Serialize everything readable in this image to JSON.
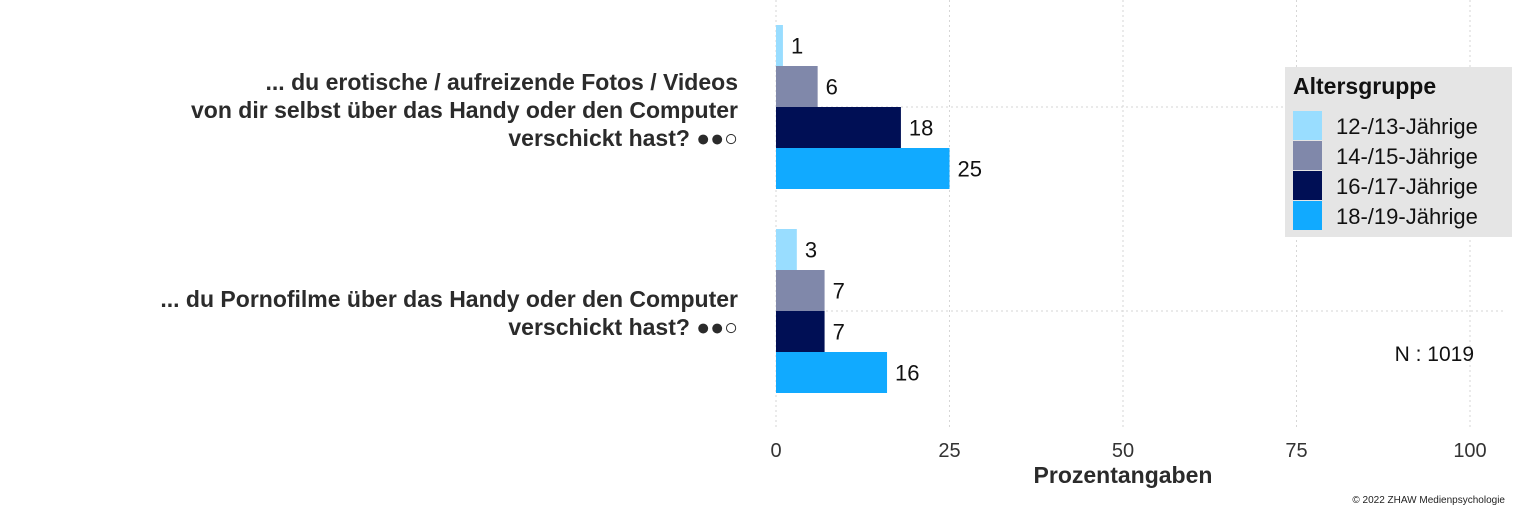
{
  "chart_data": {
    "type": "bar",
    "orientation": "horizontal",
    "categories": [
      {
        "lines": [
          "... du erotische / aufreizende Fotos / Videos",
          "von dir selbst über das Handy oder den Computer",
          "verschickt hast? ●●○"
        ]
      },
      {
        "lines": [
          "... du Pornofilme über das Handy oder den Computer",
          "verschickt hast? ●●○"
        ]
      }
    ],
    "series": [
      {
        "name": "12-/13-Jährige",
        "color": "#99ddff",
        "values": [
          1,
          3
        ]
      },
      {
        "name": "14-/15-Jährige",
        "color": "#8088aa",
        "values": [
          6,
          7
        ]
      },
      {
        "name": "16-/17-Jährige",
        "color": "#000f55",
        "values": [
          18,
          7
        ]
      },
      {
        "name": "18-/19-Jährige",
        "color": "#11aaff",
        "values": [
          25,
          16
        ]
      }
    ],
    "xlabel": "Prozentangaben",
    "xlim": [
      0,
      100
    ],
    "xticks": [
      0,
      25,
      50,
      75,
      100
    ],
    "grid": true,
    "legend": {
      "title": "Altersgruppe",
      "position": "right"
    },
    "annotation": "N : 1019",
    "credit": "© 2022 ZHAW Medienpsychologie"
  }
}
